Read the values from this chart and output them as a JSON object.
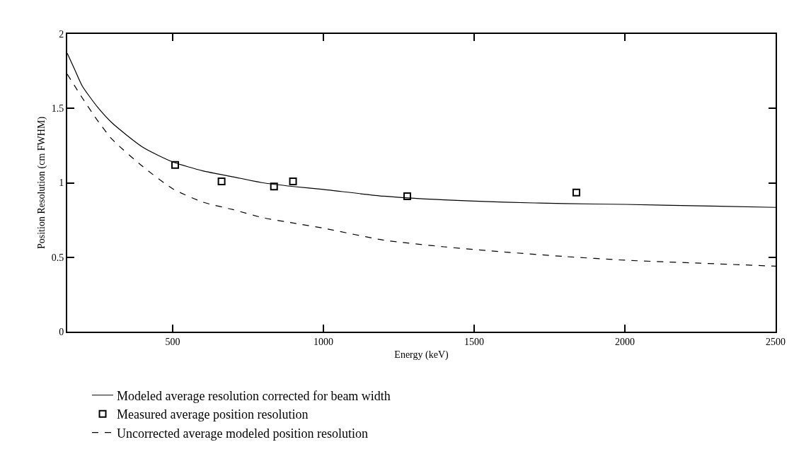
{
  "chart_data": {
    "type": "line",
    "xlabel": "Energy (keV)",
    "ylabel": "Position Resolution (cm FWHM)",
    "xlim": [
      150,
      2500
    ],
    "xticks": [
      500,
      1000,
      1500,
      2000,
      2500
    ],
    "ylim": [
      0,
      2
    ],
    "yticks": [
      0,
      0.5,
      1,
      1.5,
      2
    ],
    "legend": "bottom left",
    "series": [
      {
        "name": "Modeled average resolution corrected for beam width",
        "line_style": "solid",
        "color": "#000000",
        "x": [
          150,
          175,
          200,
          250,
          300,
          400,
          500,
          600,
          700,
          800,
          900,
          1000,
          1200,
          1400,
          1600,
          1800,
          2000,
          2250,
          2500
        ],
        "values": [
          1.87,
          1.76,
          1.65,
          1.51,
          1.4,
          1.24,
          1.14,
          1.08,
          1.04,
          1.0,
          0.975,
          0.955,
          0.91,
          0.885,
          0.87,
          0.86,
          0.855,
          0.845,
          0.835
        ]
      },
      {
        "name": "Measured average position resolution",
        "type": "scatter",
        "marker": "square",
        "color": "#000000",
        "x": [
          508,
          662,
          836,
          899,
          1278,
          1839
        ],
        "values": [
          1.12,
          1.01,
          0.975,
          1.01,
          0.91,
          0.935
        ]
      },
      {
        "name": "Uncorrected average modeled position resolution",
        "type": "line",
        "line_style": "dashed",
        "color": "#000000",
        "x": [
          150,
          175,
          200,
          250,
          300,
          400,
          500,
          600,
          700,
          800,
          900,
          1000,
          1200,
          1400,
          1600,
          1800,
          2000,
          2250,
          2500
        ],
        "values": [
          1.73,
          1.65,
          1.57,
          1.42,
          1.29,
          1.11,
          0.96,
          0.87,
          0.82,
          0.765,
          0.73,
          0.695,
          0.615,
          0.57,
          0.535,
          0.505,
          0.48,
          0.46,
          0.44
        ]
      }
    ]
  }
}
